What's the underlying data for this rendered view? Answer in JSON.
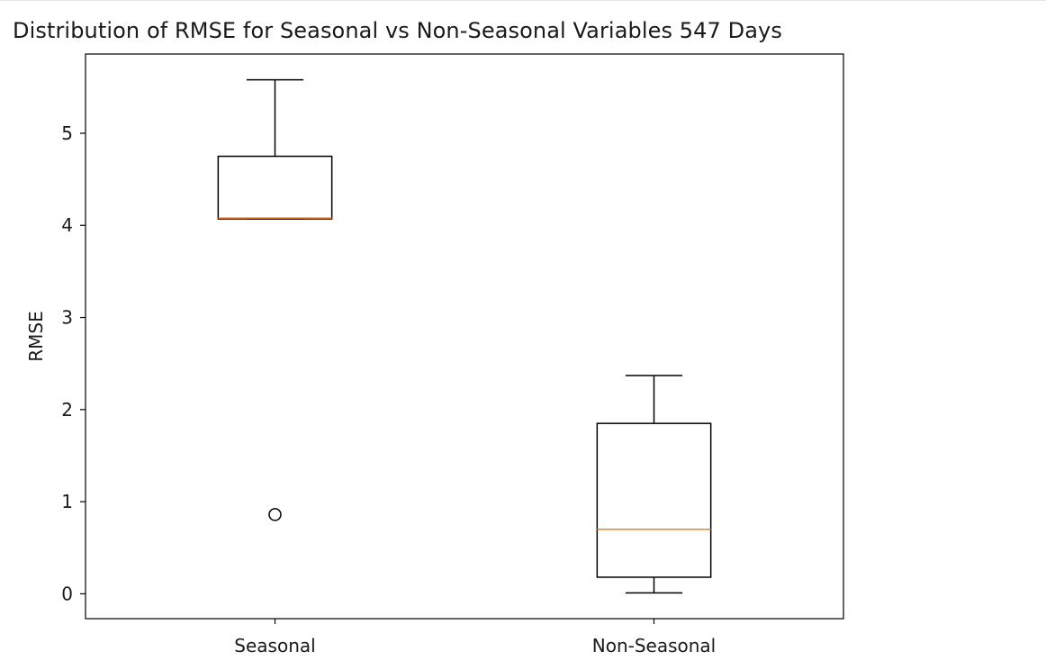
{
  "chart_data": {
    "type": "box",
    "title": "Distribution of RMSE for Seasonal vs Non-Seasonal Variables 547 Days",
    "xlabel": "",
    "ylabel": "RMSE",
    "ylim": [
      -0.27,
      5.86
    ],
    "yticks": [
      0,
      1,
      2,
      3,
      4,
      5
    ],
    "categories": [
      "Seasonal",
      "Non-Seasonal"
    ],
    "boxes": [
      {
        "category": "Seasonal",
        "whisker_low": 4.07,
        "q1": 4.07,
        "median": 4.08,
        "q3": 4.75,
        "whisker_high": 5.58,
        "outliers": [
          0.86
        ]
      },
      {
        "category": "Non-Seasonal",
        "whisker_low": 0.01,
        "q1": 0.18,
        "median": 0.7,
        "q3": 1.85,
        "whisker_high": 2.37,
        "outliers": []
      }
    ],
    "grid": false,
    "colors": {
      "box": "#000000",
      "median": "#ff7f0e",
      "outlier": "#000000"
    }
  }
}
